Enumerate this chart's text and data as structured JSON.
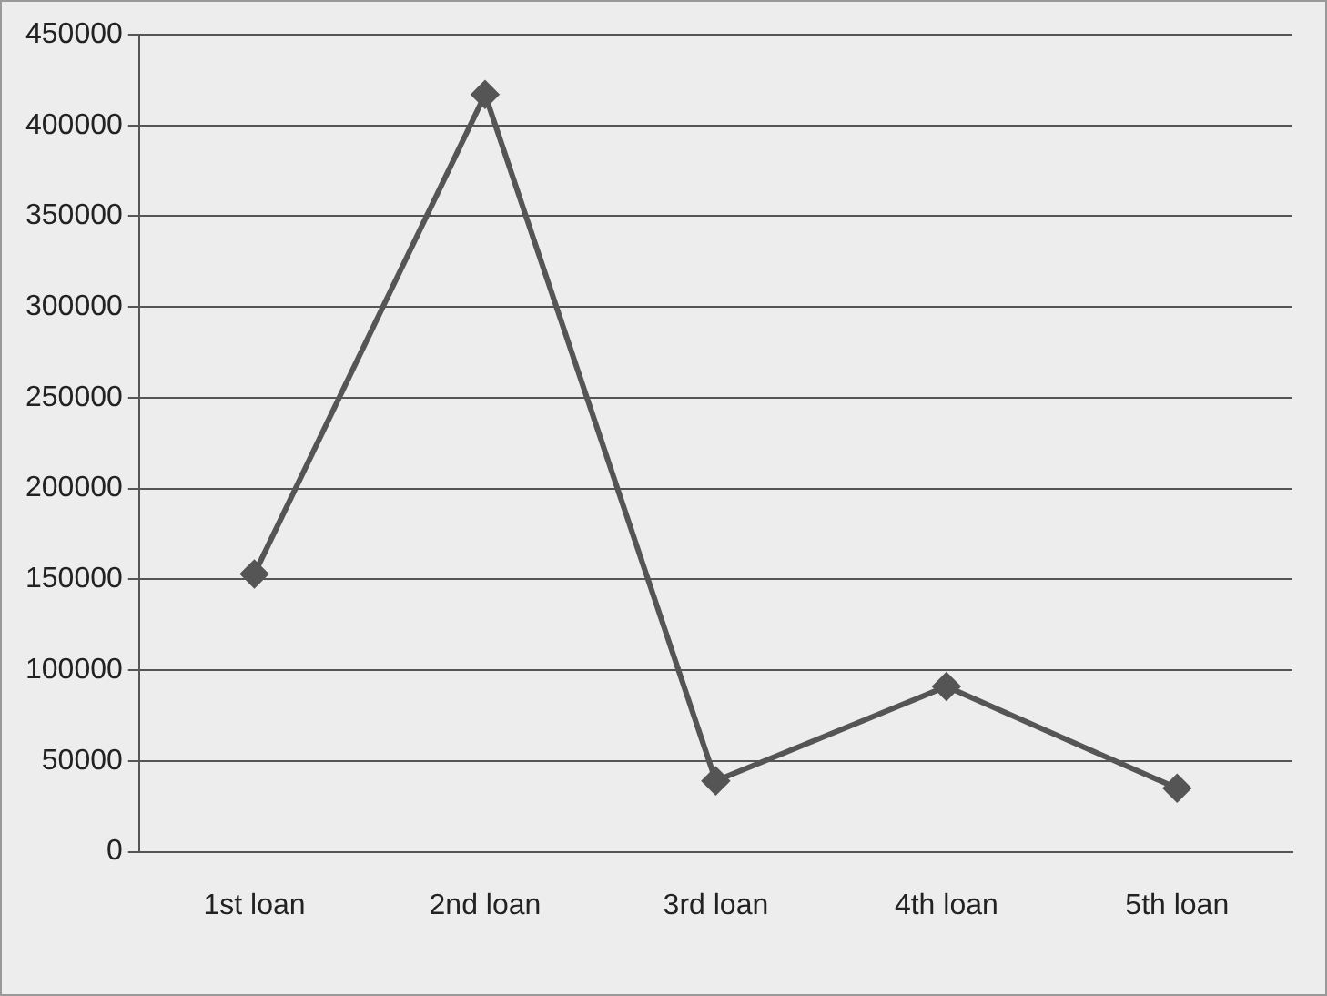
{
  "chart_data": {
    "type": "line",
    "categories": [
      "1st loan",
      "2nd loan",
      "3rd loan",
      "4th loan",
      "5th loan"
    ],
    "series": [
      {
        "color": "#555555",
        "values": [
          153000,
          417000,
          39000,
          91000,
          35000
        ]
      }
    ],
    "ylim": [
      0,
      450000
    ],
    "yticks": [
      0,
      50000,
      100000,
      150000,
      200000,
      250000,
      300000,
      350000,
      400000,
      450000
    ],
    "grid": "y",
    "marker": "diamond",
    "legend": false
  }
}
